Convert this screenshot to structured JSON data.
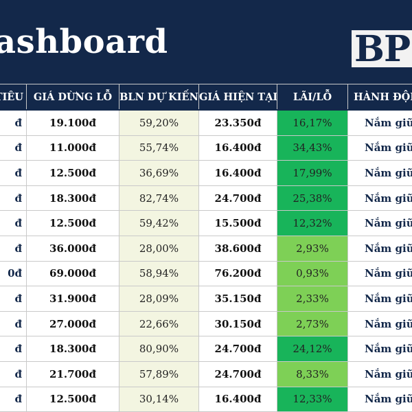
{
  "header": {
    "title": "ashboard",
    "logo_text": "BP",
    "colors": {
      "navy": "#13284a",
      "pl_high": "#18b45a",
      "pl_low": "#7ed056",
      "profit_bg": "#f3f5e1"
    }
  },
  "table": {
    "columns": [
      "TIÊU",
      "GIÁ DỪNG LỖ",
      "BLN DỰ KIẾN",
      "GIÁ HIỆN TẠI",
      "LÃI/LỖ",
      "HÀNH ĐỘNG"
    ],
    "rows": [
      {
        "name": "đ",
        "stop_loss": "19.100đ",
        "expected_profit": "59,20%",
        "current_price": "23.350đ",
        "pl": "16,17%",
        "pl_value": 16.17,
        "action": "Nắm giữ"
      },
      {
        "name": "đ",
        "stop_loss": "11.000đ",
        "expected_profit": "55,74%",
        "current_price": "16.400đ",
        "pl": "34,43%",
        "pl_value": 34.43,
        "action": "Nắm giữ"
      },
      {
        "name": "đ",
        "stop_loss": "12.500đ",
        "expected_profit": "36,69%",
        "current_price": "16.400đ",
        "pl": "17,99%",
        "pl_value": 17.99,
        "action": "Nắm giữ"
      },
      {
        "name": "đ",
        "stop_loss": "18.300đ",
        "expected_profit": "82,74%",
        "current_price": "24.700đ",
        "pl": "25,38%",
        "pl_value": 25.38,
        "action": "Nắm giữ"
      },
      {
        "name": "đ",
        "stop_loss": "12.500đ",
        "expected_profit": "59,42%",
        "current_price": "15.500đ",
        "pl": "12,32%",
        "pl_value": 12.32,
        "action": "Nắm giữ"
      },
      {
        "name": "đ",
        "stop_loss": "36.000đ",
        "expected_profit": "28,00%",
        "current_price": "38.600đ",
        "pl": "2,93%",
        "pl_value": 2.93,
        "action": "Nắm giữ"
      },
      {
        "name": "0đ",
        "stop_loss": "69.000đ",
        "expected_profit": "58,94%",
        "current_price": "76.200đ",
        "pl": "0,93%",
        "pl_value": 0.93,
        "action": "Nắm giữ"
      },
      {
        "name": "đ",
        "stop_loss": "31.900đ",
        "expected_profit": "28,09%",
        "current_price": "35.150đ",
        "pl": "2,33%",
        "pl_value": 2.33,
        "action": "Nắm giữ"
      },
      {
        "name": "đ",
        "stop_loss": "27.000đ",
        "expected_profit": "22,66%",
        "current_price": "30.150đ",
        "pl": "2,73%",
        "pl_value": 2.73,
        "action": "Nắm giữ"
      },
      {
        "name": "đ",
        "stop_loss": "18.300đ",
        "expected_profit": "80,90%",
        "current_price": "24.700đ",
        "pl": "24,12%",
        "pl_value": 24.12,
        "action": "Nắm giữ"
      },
      {
        "name": "đ",
        "stop_loss": "21.700đ",
        "expected_profit": "57,89%",
        "current_price": "24.700đ",
        "pl": "8,33%",
        "pl_value": 8.33,
        "action": "Nắm giữ"
      },
      {
        "name": "đ",
        "stop_loss": "12.500đ",
        "expected_profit": "30,14%",
        "current_price": "16.400đ",
        "pl": "12,33%",
        "pl_value": 12.33,
        "action": "Nắm giữ"
      }
    ]
  }
}
